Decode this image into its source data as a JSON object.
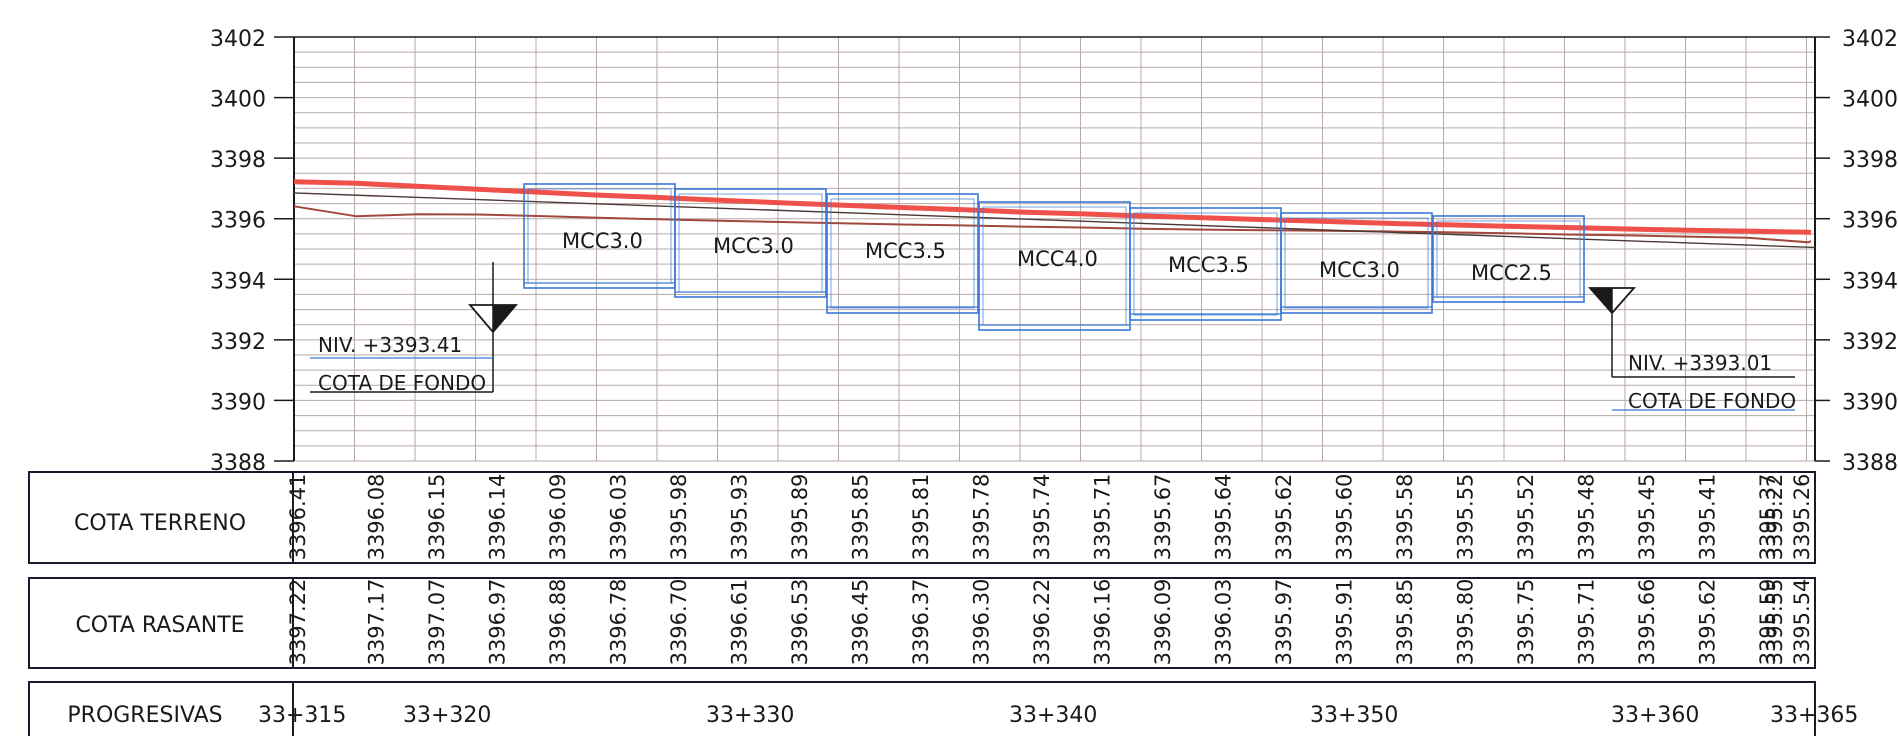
{
  "y_axis": {
    "left_labels": [
      "3402",
      "3400",
      "3398",
      "3396",
      "3394",
      "3392",
      "3390",
      "3388"
    ],
    "right_labels": [
      "3402",
      "3400",
      "3398",
      "3396",
      "3394",
      "3392",
      "3390",
      "3388"
    ]
  },
  "structures": [
    {
      "label": "MCC3.0"
    },
    {
      "label": "MCC3.0"
    },
    {
      "label": "MCC3.5"
    },
    {
      "label": "MCC4.0"
    },
    {
      "label": "MCC3.5"
    },
    {
      "label": "MCC3.0"
    },
    {
      "label": "MCC2.5"
    }
  ],
  "level_marks": [
    {
      "niv": "NIV. +3393.41",
      "desc": "COTA DE FONDO"
    },
    {
      "niv": "NIV. +3393.01",
      "desc": "COTA DE FONDO"
    }
  ],
  "table": {
    "terreno_label": "COTA TERRENO",
    "rasante_label": "COTA RASANTE",
    "progresivas_label": "PROGRESIVAS",
    "terreno_values": [
      "3396.41",
      "3396.08",
      "3396.15",
      "3396.14",
      "3396.09",
      "3396.03",
      "3395.98",
      "3395.93",
      "3395.89",
      "3395.85",
      "3395.81",
      "3395.78",
      "3395.74",
      "3395.71",
      "3395.67",
      "3395.64",
      "3395.62",
      "3395.60",
      "3395.58",
      "3395.55",
      "3395.52",
      "3395.48",
      "3395.45",
      "3395.41",
      "3395.37",
      "3395.22",
      "3395.26"
    ],
    "rasante_values": [
      "3397.22",
      "3397.17",
      "3397.07",
      "3396.97",
      "3396.88",
      "3396.78",
      "3396.70",
      "3396.61",
      "3396.53",
      "3396.45",
      "3396.37",
      "3396.30",
      "3396.22",
      "3396.16",
      "3396.09",
      "3396.03",
      "3395.97",
      "3395.91",
      "3395.85",
      "3395.80",
      "3395.75",
      "3395.71",
      "3395.66",
      "3395.62",
      "3395.59",
      "3395.55",
      "3395.54"
    ],
    "progresivas": [
      "33+315",
      "33+320",
      "33+330",
      "33+340",
      "33+350",
      "33+360",
      "33+365"
    ]
  },
  "colors": {
    "grid": "#b8aaa4",
    "axis": "#1a1a1a",
    "rasante": "#f0504a",
    "terrain": "#a0483c",
    "structure": "#3a78d8",
    "table_border": "#1a1a2e"
  }
}
